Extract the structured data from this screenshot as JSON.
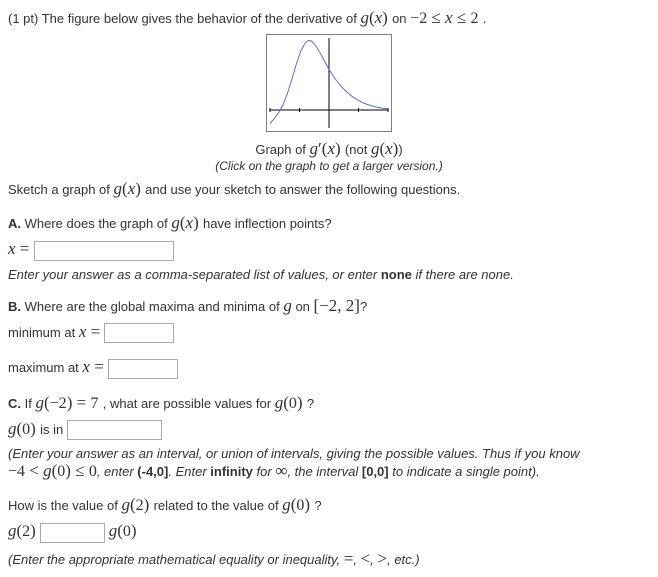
{
  "intro": {
    "points": "(1 pt)",
    "lead": "The figure below gives the behavior of the derivative of",
    "fn": "g",
    "var": "x",
    "on": "on",
    "domain_lo": "−2",
    "domain_rel1": "≤",
    "domain_mid": "x",
    "domain_rel2": "≤",
    "domain_hi": "2",
    "period": "."
  },
  "graph": {
    "type": "line",
    "width": 126,
    "height": 98,
    "xlim": [
      -2,
      2
    ],
    "ylim": [
      -0.6,
      2.4
    ],
    "background": "#ffffff",
    "border_color": "#808080",
    "axis_color": "#000000",
    "grid_color": "#d0d0d0",
    "axis_width": 1,
    "curve_color": "#5b6fd8",
    "curve_width": 1,
    "curve_points": [
      [
        -2.0,
        -0.45
      ],
      [
        -1.85,
        -0.28
      ],
      [
        -1.7,
        -0.08
      ],
      [
        -1.55,
        0.2
      ],
      [
        -1.4,
        0.58
      ],
      [
        -1.25,
        1.05
      ],
      [
        -1.1,
        1.55
      ],
      [
        -0.95,
        1.98
      ],
      [
        -0.8,
        2.24
      ],
      [
        -0.7,
        2.32
      ],
      [
        -0.6,
        2.3
      ],
      [
        -0.45,
        2.15
      ],
      [
        -0.3,
        1.9
      ],
      [
        -0.15,
        1.62
      ],
      [
        0.0,
        1.35
      ],
      [
        0.2,
        1.05
      ],
      [
        0.4,
        0.8
      ],
      [
        0.6,
        0.6
      ],
      [
        0.8,
        0.44
      ],
      [
        1.0,
        0.32
      ],
      [
        1.2,
        0.22
      ],
      [
        1.4,
        0.15
      ],
      [
        1.6,
        0.1
      ],
      [
        1.8,
        0.06
      ],
      [
        2.0,
        0.04
      ]
    ],
    "xticks_minor": [
      -2,
      -1,
      1,
      2
    ],
    "yticks": [],
    "top_labels_left": "",
    "top_labels_right": "",
    "caption_pre": "Graph of",
    "caption_fn": "g",
    "caption_prime": "′",
    "caption_var": "x",
    "caption_not_pre": "(not",
    "caption_not_fn": "g",
    "caption_not_var": "x",
    "caption_not_post": ")",
    "click_hint": "(Click on the graph to get a larger version.)"
  },
  "sketch": {
    "pre": "Sketch a graph of",
    "fn": "g",
    "var": "x",
    "post": "and use your sketch to answer the following questions."
  },
  "A": {
    "label": "A.",
    "q_pre": "Where does the graph of",
    "fn": "g",
    "var": "x",
    "q_post": "have inflection points?",
    "x_eq": "x",
    "eq": "=",
    "input_width": 140,
    "hint": "Enter your answer as a comma-separated list of values, or enter",
    "hint_bold": "none",
    "hint_post": "if there are none."
  },
  "B": {
    "label": "B.",
    "q_pre": "Where are the global maxima and minima of",
    "fn": "g",
    "q_mid": "on",
    "int_l": "[−2,",
    "int_r": "2]",
    "q_post": "?",
    "min_label_pre": "minimum at",
    "min_var": "x",
    "min_eq": "=",
    "max_label_pre": "maximum at",
    "max_var": "x",
    "max_eq": "=",
    "input_width": 70
  },
  "C": {
    "label": "C.",
    "if": "If",
    "fn1": "g",
    "arg1": "−2",
    "eq1": "=",
    "val1": "7",
    "comma": ",",
    "q_mid": "what are possible values for",
    "fn2": "g",
    "arg2": "0",
    "q_post": "?",
    "g0_fn": "g",
    "g0_arg": "0",
    "g0_is": "is in",
    "input_width": 95,
    "hint_open": "(Enter your answer as an interval, or union of intervals, giving the possible values. Thus if you know",
    "bound_lo": "−4",
    "bound_rel1": "<",
    "bound_fn": "g",
    "bound_arg": "0",
    "bound_rel2": "≤",
    "bound_hi": "0",
    "hint_mid1": ", enter",
    "hint_b1": "(-4,0]",
    "hint_mid2": ". Enter",
    "hint_b2": "infinity",
    "hint_mid3": "for",
    "inf": "∞",
    "hint_mid4": ", the interval",
    "hint_b3": "[0,0]",
    "hint_mid5": "to indicate a single point)."
  },
  "D": {
    "q_pre": "How is the value of",
    "fn1": "g",
    "arg1": "2",
    "q_mid": "related to the value of",
    "fn2": "g",
    "arg2": "0",
    "q_post": "?",
    "lhs_fn": "g",
    "lhs_arg": "2",
    "rhs_fn": "g",
    "rhs_arg": "0",
    "input_width": 65,
    "hint": "(Enter the appropriate mathematical equality or inequality,",
    "sym1": "=",
    "c1": ",",
    "sym2": "<",
    "c2": ",",
    "sym3": ">",
    "c3": ",",
    "hint_post": "etc.)"
  }
}
